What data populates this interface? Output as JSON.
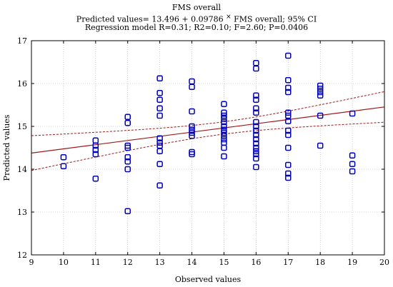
{
  "chart_data": {
    "type": "scatter",
    "title": "FMS overall",
    "subtitle": "Predicted values= 13.496 + 0.09786 * FMS overall; 95% CI",
    "subtitle2": "Regression model R=0.31; R2=0.10; F=2.60; P=0.0406",
    "xlabel": "Observed values",
    "ylabel": "Predicted values",
    "xlim": [
      9,
      20
    ],
    "ylim": [
      12,
      17
    ],
    "xticks": [
      9,
      10,
      11,
      12,
      13,
      14,
      15,
      16,
      17,
      18,
      19,
      20
    ],
    "yticks": [
      12,
      13,
      14,
      15,
      16,
      17
    ],
    "grid": true,
    "regression": {
      "intercept": 13.496,
      "slope": 0.09786
    },
    "points": [
      {
        "x": 10,
        "y": 14.28
      },
      {
        "x": 10,
        "y": 14.07
      },
      {
        "x": 11,
        "y": 14.67
      },
      {
        "x": 11,
        "y": 14.55
      },
      {
        "x": 11,
        "y": 14.45
      },
      {
        "x": 11,
        "y": 14.35
      },
      {
        "x": 11,
        "y": 13.78
      },
      {
        "x": 12,
        "y": 15.22
      },
      {
        "x": 12,
        "y": 15.08
      },
      {
        "x": 12,
        "y": 14.55
      },
      {
        "x": 12,
        "y": 14.5
      },
      {
        "x": 12,
        "y": 14.28
      },
      {
        "x": 12,
        "y": 14.18
      },
      {
        "x": 12,
        "y": 14.0
      },
      {
        "x": 12,
        "y": 13.02
      },
      {
        "x": 13,
        "y": 16.12
      },
      {
        "x": 13,
        "y": 15.78
      },
      {
        "x": 13,
        "y": 15.62
      },
      {
        "x": 13,
        "y": 15.42
      },
      {
        "x": 13,
        "y": 15.25
      },
      {
        "x": 13,
        "y": 14.72
      },
      {
        "x": 13,
        "y": 14.62
      },
      {
        "x": 13,
        "y": 14.55
      },
      {
        "x": 13,
        "y": 14.42
      },
      {
        "x": 13,
        "y": 14.12
      },
      {
        "x": 13,
        "y": 13.62
      },
      {
        "x": 14,
        "y": 16.05
      },
      {
        "x": 14,
        "y": 15.92
      },
      {
        "x": 14,
        "y": 15.35
      },
      {
        "x": 14,
        "y": 15.0
      },
      {
        "x": 14,
        "y": 14.92
      },
      {
        "x": 14,
        "y": 14.85
      },
      {
        "x": 14,
        "y": 14.78
      },
      {
        "x": 14,
        "y": 14.4
      },
      {
        "x": 14,
        "y": 14.35
      },
      {
        "x": 15,
        "y": 15.52
      },
      {
        "x": 15,
        "y": 15.32
      },
      {
        "x": 15,
        "y": 15.25
      },
      {
        "x": 15,
        "y": 15.18
      },
      {
        "x": 15,
        "y": 15.1
      },
      {
        "x": 15,
        "y": 15.0
      },
      {
        "x": 15,
        "y": 14.92
      },
      {
        "x": 15,
        "y": 14.85
      },
      {
        "x": 15,
        "y": 14.78
      },
      {
        "x": 15,
        "y": 14.7
      },
      {
        "x": 15,
        "y": 14.62
      },
      {
        "x": 15,
        "y": 14.5
      },
      {
        "x": 15,
        "y": 14.3
      },
      {
        "x": 16,
        "y": 16.48
      },
      {
        "x": 16,
        "y": 16.35
      },
      {
        "x": 16,
        "y": 15.72
      },
      {
        "x": 16,
        "y": 15.62
      },
      {
        "x": 16,
        "y": 15.42
      },
      {
        "x": 16,
        "y": 15.32
      },
      {
        "x": 16,
        "y": 15.1
      },
      {
        "x": 16,
        "y": 15.0
      },
      {
        "x": 16,
        "y": 14.9
      },
      {
        "x": 16,
        "y": 14.8
      },
      {
        "x": 16,
        "y": 14.7
      },
      {
        "x": 16,
        "y": 14.6
      },
      {
        "x": 16,
        "y": 14.5
      },
      {
        "x": 16,
        "y": 14.42
      },
      {
        "x": 16,
        "y": 14.35
      },
      {
        "x": 16,
        "y": 14.25
      },
      {
        "x": 16,
        "y": 14.05
      },
      {
        "x": 17,
        "y": 16.65
      },
      {
        "x": 17,
        "y": 16.08
      },
      {
        "x": 17,
        "y": 15.9
      },
      {
        "x": 17,
        "y": 15.8
      },
      {
        "x": 17,
        "y": 15.32
      },
      {
        "x": 17,
        "y": 15.25
      },
      {
        "x": 17,
        "y": 15.12
      },
      {
        "x": 17,
        "y": 14.9
      },
      {
        "x": 17,
        "y": 14.8
      },
      {
        "x": 17,
        "y": 14.5
      },
      {
        "x": 17,
        "y": 14.1
      },
      {
        "x": 17,
        "y": 13.9
      },
      {
        "x": 17,
        "y": 13.8
      },
      {
        "x": 18,
        "y": 15.95
      },
      {
        "x": 18,
        "y": 15.88
      },
      {
        "x": 18,
        "y": 15.8
      },
      {
        "x": 18,
        "y": 15.72
      },
      {
        "x": 18,
        "y": 15.25
      },
      {
        "x": 18,
        "y": 14.55
      },
      {
        "x": 19,
        "y": 15.3
      },
      {
        "x": 19,
        "y": 14.32
      },
      {
        "x": 19,
        "y": 14.12
      },
      {
        "x": 19,
        "y": 13.95
      }
    ],
    "colors": {
      "marker": "#0000bb",
      "fit": "#a01818",
      "ci": "#a01818",
      "grid": "#aaaaaa"
    }
  }
}
